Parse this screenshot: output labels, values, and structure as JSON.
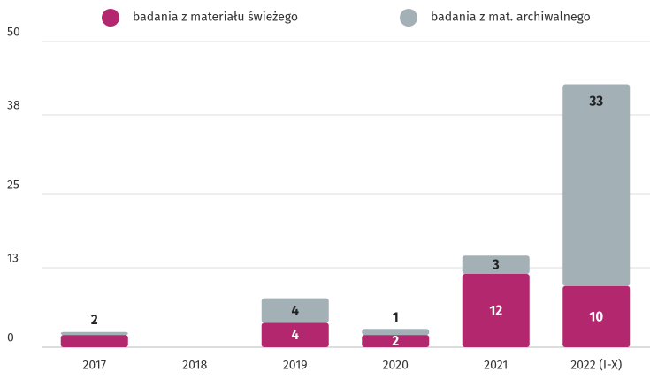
{
  "chart_data": {
    "type": "stacked_bar",
    "categories": [
      "2017",
      "2018",
      "2019",
      "2020",
      "2021",
      "2022 (I-X)"
    ],
    "series": [
      {
        "name": "badania z materiału świeżego",
        "color": "#b3276f",
        "values": [
          2,
          null,
          4,
          2,
          12,
          10
        ]
      },
      {
        "name": "badania z mat. archiwalnego",
        "color": "#a3b1b7",
        "values": [
          0.5,
          null,
          4,
          1,
          3,
          33
        ]
      }
    ],
    "ylim": [
      0,
      50
    ],
    "yticks": [
      0,
      13,
      25,
      38,
      50
    ],
    "grid": true,
    "legend": "top"
  }
}
